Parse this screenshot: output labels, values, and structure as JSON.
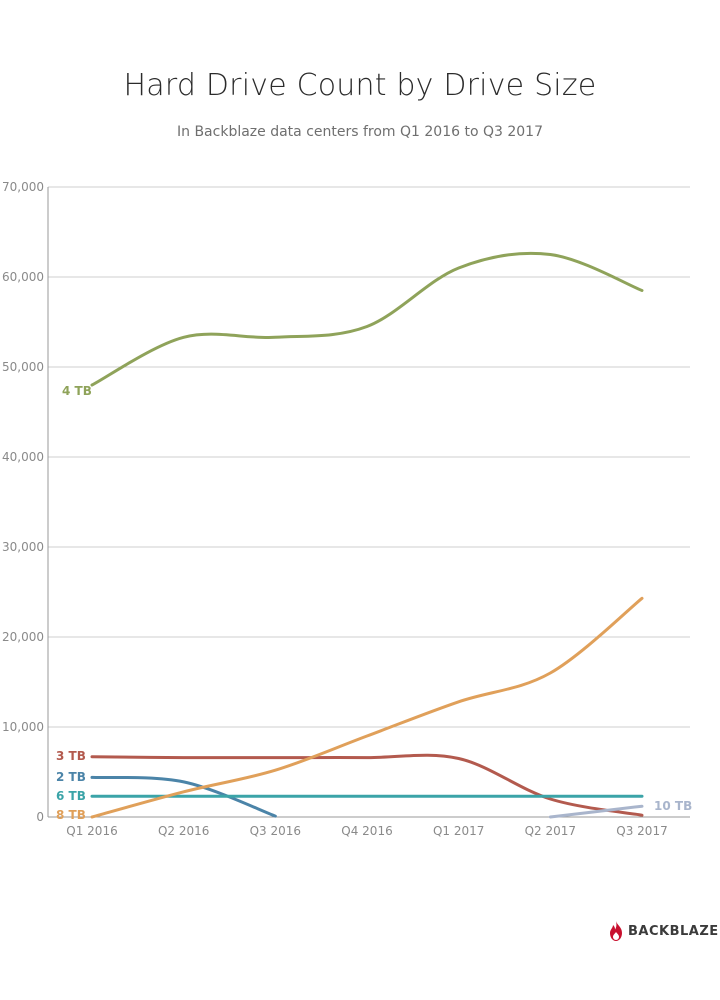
{
  "chart_data": {
    "type": "line",
    "title": "Hard Drive Count by Drive Size",
    "subtitle": "In Backblaze data centers from Q1 2016 to Q3 2017",
    "xlabel": "",
    "ylabel": "",
    "categories": [
      "Q1 2016",
      "Q2 2016",
      "Q3 2016",
      "Q4 2016",
      "Q1 2017",
      "Q2 2017",
      "Q3 2017"
    ],
    "ylim": [
      0,
      70000
    ],
    "yticks": [
      0,
      10000,
      20000,
      30000,
      40000,
      50000,
      60000,
      70000
    ],
    "ytick_labels": [
      "0",
      "10,000",
      "20,000",
      "30,000",
      "40,000",
      "50,000",
      "60,000",
      "70,000"
    ],
    "grid": true,
    "legend": "none",
    "series": [
      {
        "name": "4 TB",
        "color": "#8fa35a",
        "label_side": "left",
        "values": [
          48000,
          53300,
          53300,
          54500,
          61000,
          62500,
          58500
        ]
      },
      {
        "name": "3 TB",
        "color": "#b35a4e",
        "label_side": "left",
        "values": [
          6700,
          6600,
          6600,
          6600,
          6500,
          2000,
          200
        ]
      },
      {
        "name": "2 TB",
        "color": "#4b84a8",
        "label_side": "left",
        "values": [
          4400,
          3900,
          100,
          null,
          null,
          null,
          null
        ]
      },
      {
        "name": "6 TB",
        "color": "#3ba4a8",
        "label_side": "left",
        "values": [
          2300,
          2300,
          2300,
          2300,
          2300,
          2300,
          2300
        ]
      },
      {
        "name": "8 TB",
        "color": "#e0a05a",
        "label_side": "left",
        "values": [
          0,
          2800,
          5200,
          9000,
          12800,
          16000,
          24300
        ]
      },
      {
        "name": "10 TB",
        "color": "#a9b5cc",
        "label_side": "right",
        "values": [
          null,
          null,
          null,
          null,
          null,
          0,
          1200
        ]
      }
    ]
  },
  "brand": {
    "name": "BACKBLAZE",
    "icon": "flame-icon",
    "color": "#c8102e"
  }
}
